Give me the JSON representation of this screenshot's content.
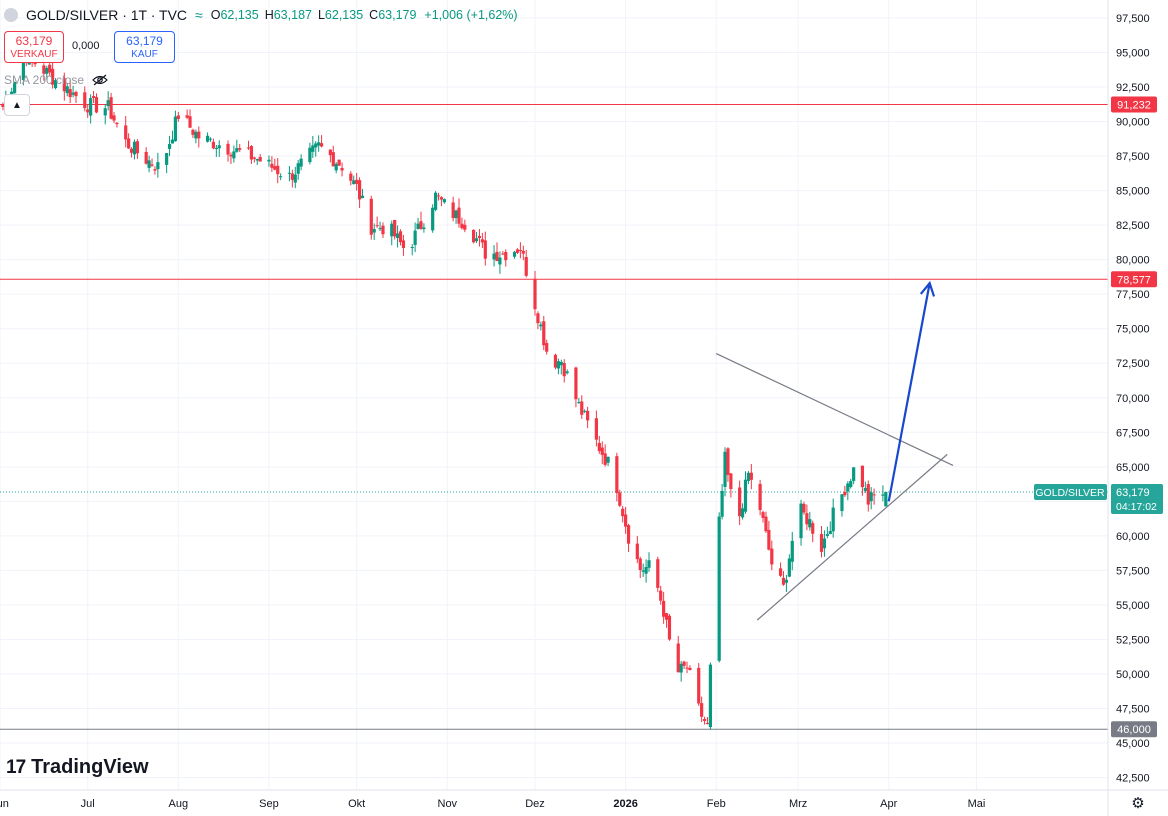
{
  "header": {
    "symbol": "GOLD/SILVER · 1T · TVC",
    "open_label": "O",
    "open": "62,135",
    "high_label": "H",
    "high": "63,187",
    "low_label": "L",
    "low": "62,135",
    "close_label": "C",
    "close": "63,179",
    "change": "+1,006 (+1,62%)"
  },
  "trade": {
    "sell_price": "63,179",
    "sell_label": "VERKAUF",
    "spread": "0,000",
    "buy_price": "63,179",
    "buy_label": "KAUF"
  },
  "indicator": {
    "label": "SMA 200 close"
  },
  "logo": {
    "mark": "17",
    "name": "TradingView"
  },
  "colors": {
    "up": "#089981",
    "down": "#f23645",
    "level": "#f23645",
    "support": "#787b86",
    "projection": "#1848cc",
    "price_tag": "#26a69a"
  },
  "chart_data": {
    "type": "candlestick",
    "y_ticks": [
      "42,500",
      "45,000",
      "47,500",
      "50,000",
      "52,500",
      "55,000",
      "57,500",
      "60,000",
      "62,500",
      "65,000",
      "67,500",
      "70,000",
      "72,500",
      "75,000",
      "77,500",
      "80,000",
      "82,500",
      "85,000",
      "87,500",
      "90,000",
      "92,500",
      "95,000",
      "97,500"
    ],
    "x_labels": [
      {
        "label": "Jun",
        "date": "2025-06-01"
      },
      {
        "label": "Jul",
        "date": "2025-07-01"
      },
      {
        "label": "Aug",
        "date": "2025-08-01"
      },
      {
        "label": "Sep",
        "date": "2025-09-01"
      },
      {
        "label": "Okt",
        "date": "2025-10-01"
      },
      {
        "label": "Nov",
        "date": "2025-11-01"
      },
      {
        "label": "Dez",
        "date": "2025-12-01"
      },
      {
        "label": "2026",
        "date": "2026-01-01",
        "bold": true
      },
      {
        "label": "Feb",
        "date": "2026-02-01"
      },
      {
        "label": "Mrz",
        "date": "2026-03-01"
      },
      {
        "label": "Apr",
        "date": "2026-04-01"
      },
      {
        "label": "Mai",
        "date": "2026-05-01"
      }
    ],
    "ylim": [
      41.6,
      98.8
    ],
    "xlim": [
      "2025-06-01",
      "2026-06-15"
    ],
    "horizontal_levels": [
      {
        "value": 91.232,
        "label": "91,232",
        "color": "#f23645"
      },
      {
        "value": 78.577,
        "label": "78,577",
        "color": "#f23645"
      },
      {
        "value": 46.0,
        "label": "46,000",
        "color": "#787b86"
      }
    ],
    "last_price": {
      "value": 63.179,
      "label": "63,179",
      "symbol": "GOLD/SILVER",
      "countdown": "04:17:02"
    },
    "trendlines": [
      {
        "from": {
          "date": "2026-02-01",
          "value": 73.2
        },
        "to": {
          "date": "2026-04-23",
          "value": 65.1
        }
      },
      {
        "from": {
          "date": "2026-02-15",
          "value": 53.9
        },
        "to": {
          "date": "2026-04-21",
          "value": 65.9
        }
      }
    ],
    "projection_arrow": {
      "from": {
        "date": "2026-04-01",
        "value": 62.5
      },
      "to": {
        "date": "2026-04-15",
        "value": 78.3
      }
    },
    "anchors": [
      [
        "2025-06-01",
        90.6
      ],
      [
        "2025-06-10",
        94.8
      ],
      [
        "2025-06-20",
        93.0
      ],
      [
        "2025-07-01",
        91.2
      ],
      [
        "2025-07-08",
        91.0
      ],
      [
        "2025-07-14",
        88.5
      ],
      [
        "2025-07-20",
        87.4
      ],
      [
        "2025-07-26",
        86.6
      ],
      [
        "2025-08-01",
        90.5
      ],
      [
        "2025-08-08",
        88.9
      ],
      [
        "2025-08-18",
        88.1
      ],
      [
        "2025-08-28",
        87.3
      ],
      [
        "2025-09-08",
        86.0
      ],
      [
        "2025-09-18",
        88.2
      ],
      [
        "2025-09-26",
        86.8
      ],
      [
        "2025-10-01",
        85.2
      ],
      [
        "2025-10-06",
        82.4
      ],
      [
        "2025-10-12",
        82.3
      ],
      [
        "2025-10-18",
        80.6
      ],
      [
        "2025-10-24",
        82.9
      ],
      [
        "2025-10-28",
        84.6
      ],
      [
        "2025-11-02",
        83.5
      ],
      [
        "2025-11-08",
        82.5
      ],
      [
        "2025-11-14",
        80.5
      ],
      [
        "2025-11-20",
        80.4
      ],
      [
        "2025-11-26",
        80.9
      ],
      [
        "2025-12-02",
        76.0
      ],
      [
        "2025-12-06",
        72.6
      ],
      [
        "2025-12-10",
        72.7
      ],
      [
        "2025-12-16",
        69.4
      ],
      [
        "2025-12-22",
        66.8
      ],
      [
        "2025-12-28",
        64.5
      ],
      [
        "2026-01-02",
        60.0
      ],
      [
        "2026-01-06",
        57.6
      ],
      [
        "2026-01-10",
        57.8
      ],
      [
        "2026-01-14",
        54.6
      ],
      [
        "2026-01-18",
        50.0
      ],
      [
        "2026-01-22",
        50.5
      ],
      [
        "2026-01-26",
        47.4
      ],
      [
        "2026-01-29",
        46.2
      ],
      [
        "2026-02-01",
        58.6
      ],
      [
        "2026-02-04",
        65.5
      ],
      [
        "2026-02-08",
        60.5
      ],
      [
        "2026-02-12",
        64.5
      ],
      [
        "2026-02-16",
        62.0
      ],
      [
        "2026-02-20",
        58.0
      ],
      [
        "2026-02-24",
        56.2
      ],
      [
        "2026-03-01",
        62.0
      ],
      [
        "2026-03-05",
        61.0
      ],
      [
        "2026-03-09",
        59.2
      ],
      [
        "2026-03-13",
        61.5
      ],
      [
        "2026-03-17",
        63.5
      ],
      [
        "2026-03-21",
        65.2
      ],
      [
        "2026-03-25",
        62.5
      ],
      [
        "2026-03-28",
        63.0
      ],
      [
        "2026-03-31",
        63.179
      ]
    ]
  }
}
